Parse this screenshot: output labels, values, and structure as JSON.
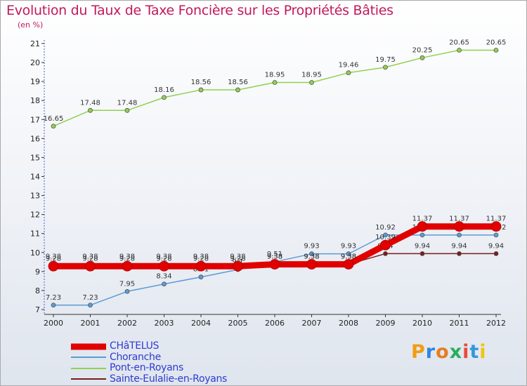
{
  "chart_data": {
    "type": "line",
    "title": "Evolution du Taux de Taxe Foncière sur les Propriétés Bâties",
    "unit": "(en %)",
    "x": [
      "2000",
      "2001",
      "2002",
      "2003",
      "2004",
      "2005",
      "2006",
      "2007",
      "2008",
      "2009",
      "2010",
      "2011",
      "2012"
    ],
    "ylim": [
      7,
      21
    ],
    "yticks": [
      7,
      8,
      9,
      10,
      11,
      12,
      13,
      14,
      15,
      16,
      17,
      18,
      19,
      20,
      21
    ],
    "grid": false,
    "series": [
      {
        "name": "CHâTELUS",
        "color": "#e10000",
        "values": [
          9.28,
          9.28,
          9.28,
          9.28,
          9.28,
          9.28,
          9.38,
          9.38,
          9.38,
          10.39,
          11.37,
          11.37,
          11.37
        ],
        "labels": [
          "9.28",
          "9.28",
          "9.28",
          "9.28",
          "9.28",
          "9.28",
          "9.38",
          "9.38",
          "9.38",
          "10.39",
          "11.37",
          "11.37",
          "11.37"
        ]
      },
      {
        "name": "Choranche",
        "color": "#5b9bd5",
        "values": [
          7.23,
          7.23,
          7.95,
          8.34,
          8.71,
          9.1,
          9.51,
          9.93,
          9.93,
          10.92,
          10.92,
          10.92,
          10.92
        ],
        "labels": [
          "7.23",
          "7.23",
          "7.95",
          "8.34",
          "8.71",
          "9.1",
          "9.51",
          "9.93",
          "9.93",
          "10.92",
          "10.92",
          "10.92",
          "10.92"
        ]
      },
      {
        "name": "Pont-en-Royans",
        "color": "#92d050",
        "values": [
          16.65,
          17.48,
          17.48,
          18.16,
          18.56,
          18.56,
          18.95,
          18.95,
          19.46,
          19.75,
          20.25,
          20.65,
          20.65
        ],
        "labels": [
          "16.65",
          "17.48",
          "17.48",
          "18.16",
          "18.56",
          "18.56",
          "18.95",
          "18.95",
          "19.46",
          "19.75",
          "20.25",
          "20.65",
          "20.65"
        ]
      },
      {
        "name": "Sainte-Eulalie-en-Royans",
        "color": "#7a1b1b",
        "values": [
          9.38,
          9.38,
          9.38,
          9.38,
          9.38,
          9.38,
          9.38,
          9.38,
          9.38,
          9.94,
          9.94,
          9.94,
          9.94
        ],
        "labels": [
          "9.38",
          "9.38",
          "9.38",
          "9.38",
          "9.38",
          "9.38",
          "9.38",
          "9.38",
          "9.38",
          "9.94",
          "9.94",
          "9.94",
          "9.94"
        ]
      }
    ]
  },
  "legend": {
    "items": [
      {
        "label": "CHâTELUS"
      },
      {
        "label": "Choranche"
      },
      {
        "label": "Pont-en-Royans"
      },
      {
        "label": "Sainte-Eulalie-en-Royans"
      }
    ]
  },
  "brand": {
    "text": "Proxiti"
  }
}
